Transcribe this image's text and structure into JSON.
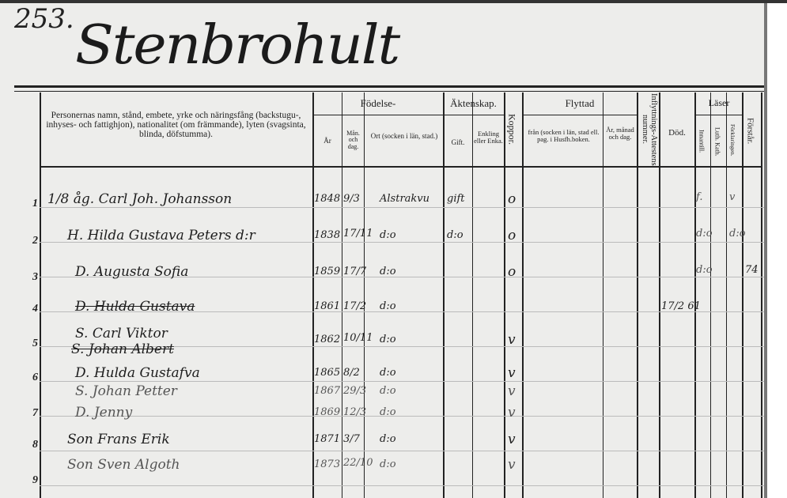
{
  "page_number": "253.",
  "parish_title": "Stenbrohult",
  "headers": {
    "person": "Personernas namn, stånd, embete, yrke och näringsfång (backstugu-, inhyses- och fattighjon), nationalitet (om främmande), lyten (svagsinta, blinda, döfstumma).",
    "fodelse": "Födelse-",
    "ar": "År",
    "man_dag": "Mån. och dag.",
    "ort": "Ort (socken i län, stad.)",
    "aktenskap": "Äktenskap.",
    "gift": "Gift.",
    "enkling": "Enkling eller Enka.",
    "koppor": "Koppor.",
    "flyttad": "Flyttad",
    "fran": "från (socken i län, stad ell. pag. i Husfh.boken.",
    "ar_manad": "År, månad och dag.",
    "inflyttning": "Inflyttnings-Attestens nummer.",
    "dod": "Död.",
    "laser": "Läser",
    "innantill": "Innantill.",
    "luth_kath": "Luth. Kath.",
    "forklaringen": "Förklaringen.",
    "forstar": "Förstår."
  },
  "rows": [
    {
      "no": "1",
      "name": "1/8 åg. Carl Joh. Johansson",
      "year": "1848",
      "date": "9/3",
      "place": "Alstrakvu",
      "gift": "gift",
      "koppor": "o",
      "innantill": "f.",
      "forkl": "v"
    },
    {
      "no": "2",
      "name": "H. Hilda Gustava Peters d:r",
      "year": "1838",
      "date": "17/11",
      "place": "d:o",
      "gift": "d:o",
      "koppor": "o",
      "innantill": "d:o",
      "forkl": "d:o"
    },
    {
      "no": "3",
      "name": "D. Augusta Sofia",
      "year": "1859",
      "date": "17/7",
      "place": "d:o",
      "koppor": "o",
      "innantill": "d:o",
      "forstar": "74"
    },
    {
      "no": "4",
      "name": "D. Hulda Gustava",
      "struck": true,
      "year": "1861",
      "date": "17/2",
      "place": "d:o",
      "dod": "17/2 61"
    },
    {
      "no": "5",
      "name": "S. Carl Viktor",
      "name2": "S. Johan Albert",
      "year": "1862",
      "date": "10/11",
      "place": "d:o",
      "koppor": "v"
    },
    {
      "no": "6",
      "name": "D. Hulda Gustafva",
      "year": "1865",
      "date": "8/2",
      "place": "d:o",
      "koppor": "v"
    },
    {
      "no": "",
      "name": "S. Johan Petter",
      "year": "1867",
      "date": "29/3",
      "place": "d:o",
      "koppor": "v",
      "faint": true
    },
    {
      "no": "7",
      "name": "D. Jenny",
      "year": "1869",
      "date": "12/3",
      "place": "d:o",
      "koppor": "v",
      "faint": true
    },
    {
      "no": "8",
      "name": "Son Frans Erik",
      "year": "1871",
      "date": "3/7",
      "place": "d:o",
      "koppor": "v"
    },
    {
      "no": "9",
      "name": "Son Sven Algoth",
      "year": "1873",
      "date": "22/10",
      "place": "d:o",
      "koppor": "v",
      "faint": true
    }
  ]
}
